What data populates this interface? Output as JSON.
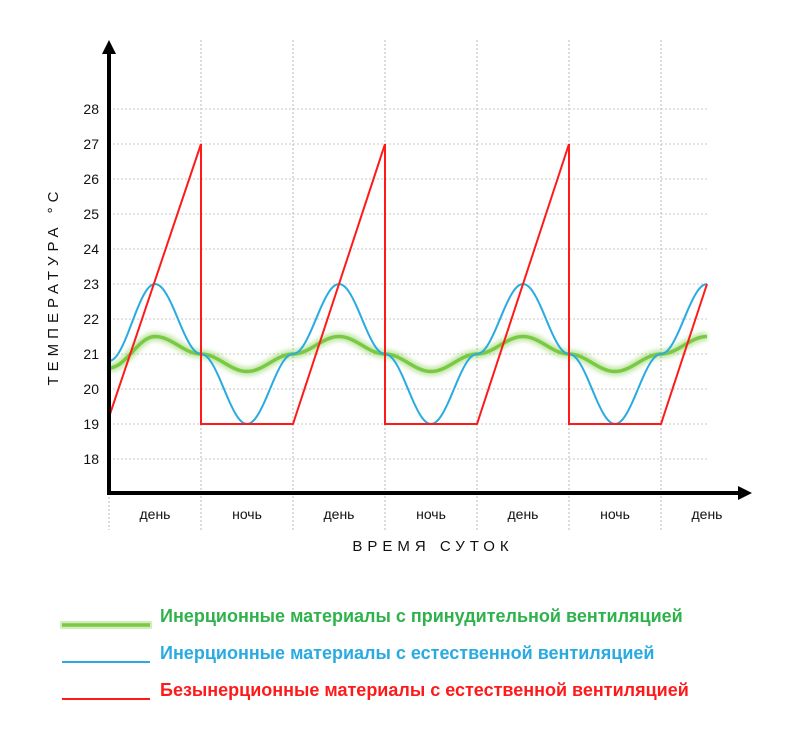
{
  "chart_data": {
    "type": "line",
    "title": "",
    "xlabel": "ВРЕМЯ СУТОК",
    "ylabel": "ТЕМПЕРАТУРА °С",
    "yticks": [
      "18",
      "19",
      "20",
      "21",
      "22",
      "23",
      "24",
      "25",
      "26",
      "27",
      "28"
    ],
    "ylim": [
      17,
      29
    ],
    "periods": [
      "день",
      "ночь",
      "день",
      "ночь",
      "день",
      "ночь",
      "день"
    ],
    "grid": true,
    "series": [
      {
        "name": "Инерционные материалы с принудительной вентиляцией",
        "color": "#7ac943",
        "x": [
          0,
          0.5,
          1,
          1.5,
          2,
          2.5,
          3,
          3.5,
          4,
          4.5,
          5,
          5.5,
          6,
          6.5
        ],
        "values": [
          20.6,
          21.5,
          21.0,
          20.5,
          21.0,
          21.5,
          21.0,
          20.5,
          21.0,
          21.5,
          21.0,
          20.5,
          21.0,
          21.5
        ]
      },
      {
        "name": "Инерционные материалы с естественной вентиляцией",
        "color": "#29abe2",
        "x": [
          0,
          0.5,
          1,
          1.5,
          2,
          2.5,
          3,
          3.5,
          4,
          4.5,
          5,
          5.5,
          6,
          6.5
        ],
        "values": [
          20.8,
          23.0,
          21.0,
          19.0,
          21.0,
          23.0,
          21.0,
          19.0,
          21.0,
          23.0,
          21.0,
          19.0,
          21.0,
          23.0
        ]
      },
      {
        "name": "Безынерционные материалы с естественной вентиляцией",
        "color": "#ff1a1a",
        "x": [
          0,
          1,
          1,
          2,
          3,
          3,
          4,
          5,
          5,
          6,
          6.5
        ],
        "values": [
          19.2,
          27,
          19,
          19,
          27,
          19,
          19,
          27,
          19,
          19,
          23
        ]
      }
    ]
  }
}
